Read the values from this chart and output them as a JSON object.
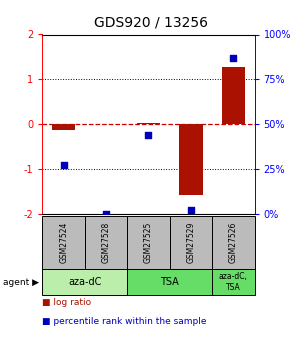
{
  "title": "GDS920 / 13256",
  "samples": [
    "GSM27524",
    "GSM27528",
    "GSM27525",
    "GSM27529",
    "GSM27526"
  ],
  "log_ratios": [
    -0.12,
    0.0,
    0.02,
    -1.58,
    1.28
  ],
  "percentile_ranks": [
    27.0,
    0.0,
    44.0,
    2.0,
    87.0
  ],
  "ylim_left": [
    -2,
    2
  ],
  "ylim_right": [
    0,
    100
  ],
  "bar_color": "#aa1100",
  "dot_color": "#0000bb",
  "zero_line_color": "#cc0000",
  "grid_color": "#000000",
  "title_fontsize": 10,
  "tick_fontsize": 7,
  "bg_plot": "#ffffff",
  "bg_sample": "#bbbbbb",
  "bg_agent1": "#bbeeaa",
  "bg_agent2": "#66dd66",
  "bg_figure": "#ffffff"
}
